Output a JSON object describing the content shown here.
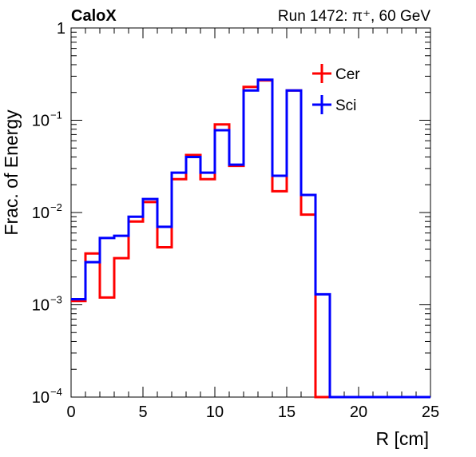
{
  "chart_data": {
    "type": "histogram",
    "title_left": "CaloX",
    "title_right": "Run 1472: π⁺, 60 GeV",
    "xlabel": "R [cm]",
    "ylabel": "Frac. of Energy",
    "xlim": [
      0,
      25
    ],
    "ylim": [
      0.0001,
      1
    ],
    "yscale": "log",
    "grid": false,
    "legend_position": "top-right",
    "x_ticks": [
      "0",
      "5",
      "10",
      "15",
      "20",
      "25"
    ],
    "y_ticks": [
      {
        "base": "10",
        "exp": "−4"
      },
      {
        "base": "10",
        "exp": "−3"
      },
      {
        "base": "10",
        "exp": "−2"
      },
      {
        "base": "10",
        "exp": "−1"
      },
      {
        "base": "1",
        "exp": ""
      }
    ],
    "bin_edges": [
      0,
      1,
      2,
      3,
      4,
      5,
      6,
      7,
      8,
      9,
      10,
      11,
      12,
      13,
      14,
      15,
      16,
      17,
      18,
      19,
      20,
      21,
      22,
      23,
      24,
      25
    ],
    "series": [
      {
        "name": "Cer",
        "color": "#ff0000",
        "values": [
          0.0011,
          0.0036,
          0.0012,
          0.0032,
          0.008,
          0.013,
          0.0042,
          0.023,
          0.042,
          0.023,
          0.09,
          0.032,
          0.23,
          0.27,
          0.017,
          0.21,
          0.0095,
          0.0001,
          0.0001,
          0.0001,
          0.0001,
          0.0001,
          0.0001,
          0.0001,
          0.0001
        ]
      },
      {
        "name": "Sci",
        "color": "#0000ff",
        "values": [
          0.00115,
          0.0029,
          0.0053,
          0.0056,
          0.009,
          0.014,
          0.007,
          0.027,
          0.04,
          0.027,
          0.078,
          0.033,
          0.21,
          0.275,
          0.025,
          0.21,
          0.0155,
          0.0013,
          0.0001,
          0.0001,
          0.0001,
          0.0001,
          0.0001,
          0.0001,
          0.0001
        ]
      }
    ]
  }
}
